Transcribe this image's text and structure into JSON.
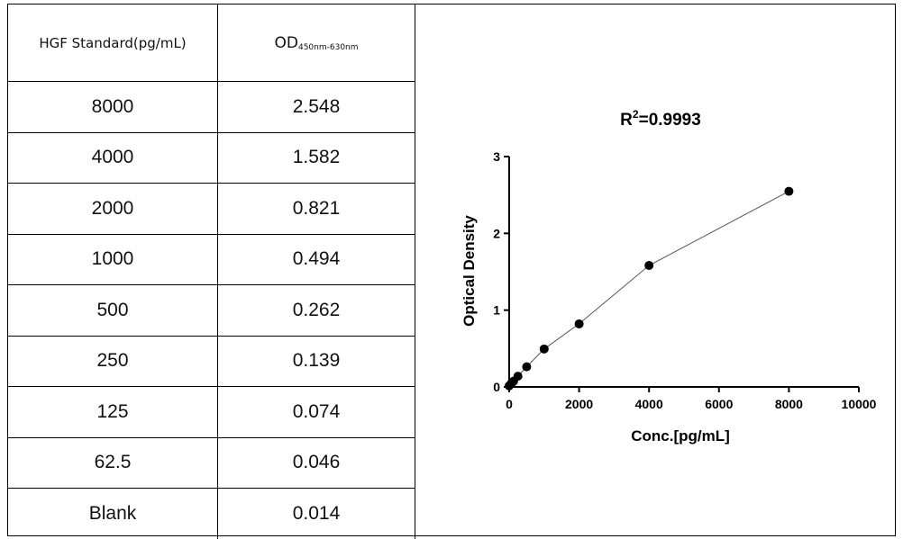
{
  "table": {
    "header_conc": "HGF Standard(pg/mL)",
    "header_od_main": "OD",
    "header_od_sub": "450nm-630nm",
    "rows": [
      {
        "conc": "8000",
        "od": "2.548"
      },
      {
        "conc": "4000",
        "od": "1.582"
      },
      {
        "conc": "2000",
        "od": "0.821"
      },
      {
        "conc": "1000",
        "od": "0.494"
      },
      {
        "conc": "500",
        "od": "0.262"
      },
      {
        "conc": "250",
        "od": "0.139"
      },
      {
        "conc": "125",
        "od": "0.074"
      },
      {
        "conc": "62.5",
        "od": "0.046"
      },
      {
        "conc": "Blank",
        "od": "0.014"
      }
    ]
  },
  "chart_data": {
    "type": "scatter",
    "title_prefix": "R",
    "title_sup": "2",
    "title_value": "=0.9993",
    "xlabel": "Conc.[pg/mL]",
    "ylabel": "Optical Density",
    "xlim": [
      0,
      10000
    ],
    "ylim": [
      0,
      3
    ],
    "xticks": [
      "0",
      "2000",
      "4000",
      "6000",
      "8000",
      "10000"
    ],
    "yticks": [
      "0",
      "1",
      "2",
      "3"
    ],
    "grid": false,
    "fit_curve": true,
    "points": [
      {
        "x": 8000,
        "y": 2.548
      },
      {
        "x": 4000,
        "y": 1.582
      },
      {
        "x": 2000,
        "y": 0.821
      },
      {
        "x": 1000,
        "y": 0.494
      },
      {
        "x": 500,
        "y": 0.262
      },
      {
        "x": 250,
        "y": 0.139
      },
      {
        "x": 125,
        "y": 0.074
      },
      {
        "x": 62.5,
        "y": 0.046
      },
      {
        "x": 0,
        "y": 0.014
      }
    ],
    "marker_color": "#000000",
    "line_color": "#555555"
  }
}
